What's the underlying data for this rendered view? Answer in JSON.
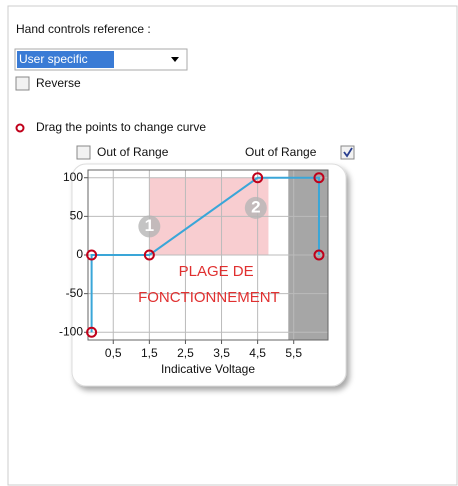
{
  "title": "Hand controls reference :",
  "dropdown": {
    "value": "User specific"
  },
  "reverse": {
    "label": "Reverse",
    "checked": false
  },
  "hint": "Drag the points to change curve",
  "out_of_range_left": {
    "label": "Out of Range",
    "checked": false
  },
  "out_of_range_right": {
    "label": "Out of Range",
    "checked": true
  },
  "chart_data": {
    "type": "line",
    "x": [
      -0.1,
      -0.1,
      1.5,
      4.5,
      6.2,
      6.2
    ],
    "values": [
      -100,
      0,
      0,
      100,
      100,
      0
    ],
    "color": "#3aa6d8",
    "point_color": "#c0001a",
    "xlabel": "Indicative Voltage",
    "xlim": [
      -0.2,
      6.45
    ],
    "ylim": [
      -110,
      110
    ],
    "xticks": [
      {
        "value": 0.5,
        "label": "0,5"
      },
      {
        "value": 1.5,
        "label": "1,5"
      },
      {
        "value": 2.5,
        "label": "2,5"
      },
      {
        "value": 3.5,
        "label": "3,5"
      },
      {
        "value": 4.5,
        "label": "4,5"
      },
      {
        "value": 5.5,
        "label": "5,5"
      }
    ],
    "yticks": [
      -100,
      -50,
      0,
      50,
      100
    ],
    "grid": true,
    "regions": [
      {
        "x": [
          1.5,
          4.8
        ],
        "y": [
          0,
          100
        ],
        "color": "#f8cdd0"
      },
      {
        "x": [
          5.35,
          6.45
        ],
        "color": "#a6a6a6"
      }
    ],
    "annotations": [
      {
        "text": "1",
        "x": 1.5,
        "y": 37,
        "badge": true
      },
      {
        "text": "2",
        "x": 4.45,
        "y": 61,
        "badge": true
      },
      {
        "text": "PLAGE DE",
        "x": 3.35,
        "y": -22
      },
      {
        "text": "FONCTIONNEMENT",
        "x": 3.15,
        "y": -56
      }
    ]
  }
}
